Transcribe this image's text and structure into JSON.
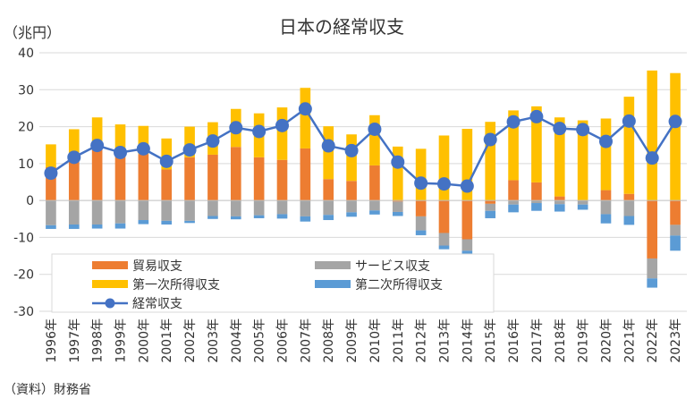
{
  "chart_data": {
    "type": "bar",
    "title": "日本の経常収支",
    "unit_label": "（兆円）",
    "source": "（資料）財務省",
    "ylim": [
      -30,
      40
    ],
    "yticks": [
      40,
      30,
      20,
      10,
      0,
      -10,
      -20,
      -30
    ],
    "categories": [
      "1996年",
      "1997年",
      "1998年",
      "1999年",
      "2000年",
      "2001年",
      "2002年",
      "2003年",
      "2004年",
      "2005年",
      "2006年",
      "2007年",
      "2008年",
      "2009年",
      "2010年",
      "2011年",
      "2012年",
      "2013年",
      "2014年",
      "2015年",
      "2016年",
      "2017年",
      "2018年",
      "2019年",
      "2020年",
      "2021年",
      "2022年",
      "2023年"
    ],
    "series": [
      {
        "name": "貿易収支",
        "kind": "bar",
        "color": "#ED7D31",
        "values": [
          9.0,
          12.3,
          15.9,
          14.1,
          12.6,
          8.4,
          11.7,
          12.4,
          14.5,
          11.7,
          11.0,
          14.1,
          5.8,
          5.3,
          9.5,
          -0.3,
          -4.3,
          -8.8,
          -10.5,
          -0.9,
          5.5,
          4.9,
          1.1,
          0.1,
          2.8,
          1.8,
          -15.7,
          -6.6
        ]
      },
      {
        "name": "サービス収支",
        "kind": "bar",
        "color": "#A5A5A5",
        "values": [
          -6.7,
          -6.5,
          -6.5,
          -6.2,
          -5.3,
          -5.5,
          -5.5,
          -4.2,
          -4.3,
          -4.0,
          -3.7,
          -4.3,
          -3.9,
          -3.2,
          -2.7,
          -2.8,
          -3.8,
          -3.4,
          -3.1,
          -1.9,
          -1.1,
          -0.7,
          -1.0,
          -1.1,
          -3.7,
          -4.2,
          -5.4,
          -2.9
        ]
      },
      {
        "name": "第一次所得収支",
        "kind": "bar",
        "color": "#FFC000",
        "values": [
          6.2,
          7.0,
          6.6,
          6.5,
          7.6,
          8.4,
          8.3,
          8.8,
          10.3,
          11.9,
          14.2,
          16.4,
          14.3,
          12.6,
          13.6,
          14.6,
          14.0,
          17.6,
          19.4,
          21.3,
          18.9,
          20.6,
          21.4,
          21.6,
          19.4,
          26.3,
          35.2,
          34.5
        ]
      },
      {
        "name": "第二次所得収支",
        "kind": "bar",
        "color": "#5B9BD5",
        "values": [
          -1.0,
          -1.2,
          -1.1,
          -1.4,
          -1.1,
          -1.0,
          -0.6,
          -0.8,
          -0.8,
          -0.8,
          -1.2,
          -1.4,
          -1.4,
          -1.2,
          -1.1,
          -1.1,
          -1.3,
          -1.0,
          -1.9,
          -2.0,
          -2.1,
          -2.1,
          -2.0,
          -1.4,
          -2.5,
          -2.4,
          -2.5,
          -4.1
        ]
      },
      {
        "name": "経常収支",
        "kind": "line",
        "color": "#4472C4",
        "values": [
          7.4,
          11.7,
          14.9,
          13.0,
          14.0,
          10.6,
          13.7,
          16.1,
          19.7,
          18.7,
          20.3,
          24.8,
          14.8,
          13.5,
          19.3,
          10.4,
          4.7,
          4.5,
          3.9,
          16.5,
          21.3,
          22.7,
          19.5,
          19.2,
          16.0,
          21.5,
          11.5,
          21.4
        ]
      }
    ],
    "legend": {
      "position": "bottom-left-inside",
      "columns": 2
    },
    "grid": {
      "horizontal": true
    }
  }
}
